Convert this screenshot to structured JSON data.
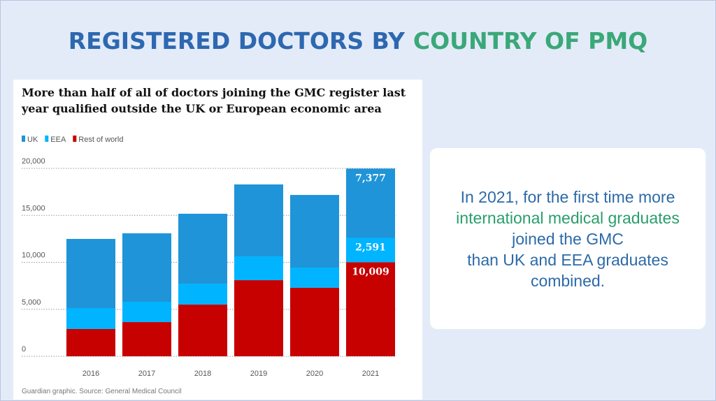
{
  "slide": {
    "title_parts": [
      {
        "text": "REGISTERED DOCTORS BY",
        "color": "#2d68b0"
      },
      {
        "text": "COUNTRY OF PMQ",
        "color": "#3aa878"
      }
    ],
    "callout": [
      {
        "text": "In 2021, for the first time more",
        "color": "#2d6aa8"
      },
      {
        "text": "international medical graduates",
        "color": "#2a9e6c"
      },
      {
        "text": "joined the GMC",
        "color": "#2d6aa8"
      },
      {
        "text": "than UK and EEA graduates",
        "color": "#2d6aa8"
      },
      {
        "text": "combined.",
        "color": "#2d6aa8"
      }
    ]
  },
  "chart_data": {
    "type": "stacked_bar",
    "title": "More than half of all of doctors joining the GMC register last year qualified outside the UK or European economic area",
    "source": "Guardian graphic. Source: General Medical Council",
    "categories": [
      "2016",
      "2017",
      "2018",
      "2019",
      "2020",
      "2021"
    ],
    "series": [
      {
        "name": "UK",
        "color": "#1f94d8",
        "values": [
          7360,
          7290,
          7440,
          7660,
          7730,
          7377
        ],
        "value_labels": [
          null,
          null,
          null,
          null,
          null,
          "7,377"
        ]
      },
      {
        "name": "EEA",
        "color": "#00b4ff",
        "values": [
          2230,
          2160,
          2230,
          2530,
          2150,
          2591
        ],
        "value_labels": [
          null,
          null,
          null,
          null,
          null,
          "2,591"
        ]
      },
      {
        "name": "Rest of world",
        "color": "#c70000",
        "values": [
          2900,
          3640,
          5500,
          8100,
          7290,
          10009
        ],
        "value_labels": [
          null,
          null,
          null,
          null,
          null,
          "10,009"
        ]
      }
    ],
    "stack_order": [
      "Rest of world",
      "EEA",
      "UK"
    ],
    "ylim": [
      0,
      20000
    ],
    "yticks": [
      0,
      {
        "value": 5000,
        "label": "5,000"
      },
      {
        "value": 10000,
        "label": "10,000"
      },
      {
        "value": 15000,
        "label": "15,000"
      },
      {
        "value": 20000,
        "label": "20,000"
      }
    ],
    "grid": true
  }
}
